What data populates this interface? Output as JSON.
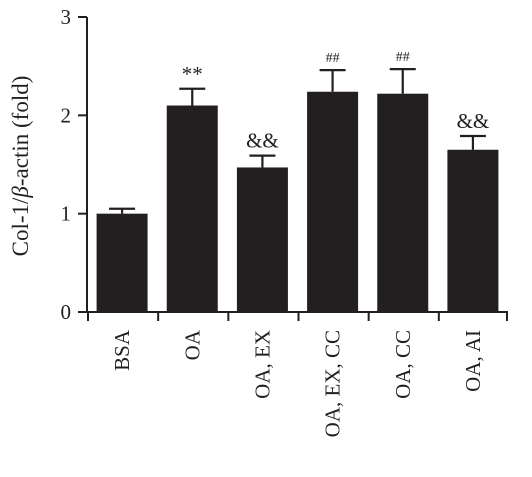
{
  "chart_data": {
    "type": "bar",
    "ylabel_parts": [
      "Col-1/",
      "β",
      "-actin (fold)"
    ],
    "categories": [
      "BSA",
      "OA",
      "OA, EX",
      "OA, EX, CC",
      "OA, CC",
      "OA, AI"
    ],
    "values": [
      1.0,
      2.1,
      1.47,
      2.24,
      2.22,
      1.65
    ],
    "errors": [
      0.05,
      0.17,
      0.12,
      0.22,
      0.25,
      0.14
    ],
    "annotations": [
      "",
      "**",
      "&&",
      "##",
      "##",
      "&&"
    ],
    "ylim": [
      0,
      3
    ],
    "yticks": [
      0,
      1,
      2,
      3
    ],
    "grid": false,
    "bar_color": "#231f20"
  }
}
